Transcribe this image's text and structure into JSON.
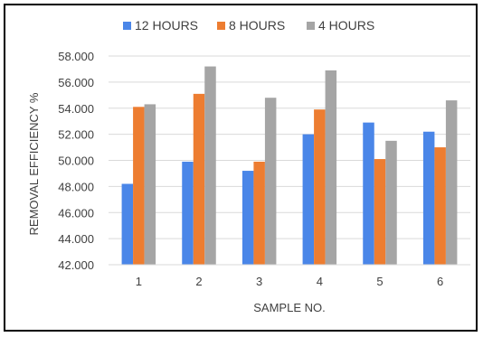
{
  "chart_data": {
    "type": "bar",
    "categories": [
      "1",
      "2",
      "3",
      "4",
      "5",
      "6"
    ],
    "series": [
      {
        "name": "12 HOURS",
        "color": "#4a86e8",
        "values": [
          48.2,
          49.9,
          49.2,
          52.0,
          52.9,
          52.2
        ]
      },
      {
        "name": "8 HOURS",
        "color": "#ed7d31",
        "values": [
          54.1,
          55.1,
          49.9,
          53.9,
          50.1,
          51.0
        ]
      },
      {
        "name": "4 HOURS",
        "color": "#a5a5a5",
        "values": [
          54.3,
          57.2,
          54.8,
          56.9,
          51.5,
          54.6
        ]
      }
    ],
    "title": "",
    "xlabel": "SAMPLE NO.",
    "ylabel": "REMOVAL EFFICIENCY %",
    "ylim": [
      42,
      58
    ],
    "yticks": [
      "42.000",
      "44.000",
      "46.000",
      "48.000",
      "50.000",
      "52.000",
      "54.000",
      "56.000",
      "58.000"
    ],
    "ytick_values": [
      42,
      44,
      46,
      48,
      50,
      52,
      54,
      56,
      58
    ],
    "grid": true,
    "legend_position": "top"
  }
}
